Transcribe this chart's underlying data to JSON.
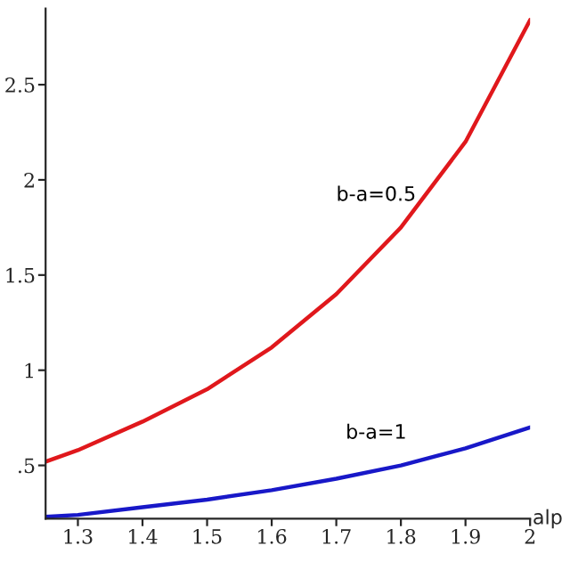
{
  "chart_data": {
    "type": "line",
    "xlabel": "alp",
    "x": [
      1.25,
      1.3,
      1.4,
      1.5,
      1.6,
      1.7,
      1.8,
      1.9,
      2.0
    ],
    "series": [
      {
        "name": "b-a=0.5",
        "color": "#e0181c",
        "values": [
          0.52,
          0.58,
          0.73,
          0.9,
          1.12,
          1.4,
          1.75,
          2.2,
          2.84
        ]
      },
      {
        "name": "b-a=1",
        "color": "#1818c8",
        "values": [
          0.23,
          0.24,
          0.28,
          0.32,
          0.37,
          0.43,
          0.5,
          0.59,
          0.7
        ]
      }
    ],
    "xlim": [
      1.25,
      2.0
    ],
    "ylim": [
      0.22,
      2.9
    ],
    "xticks": [
      1.3,
      1.4,
      1.5,
      1.6,
      1.7,
      1.8,
      1.9,
      2
    ],
    "yticks": [
      {
        "value": 0.5,
        "label": ".5"
      },
      1,
      1.5,
      2,
      2.5
    ],
    "grid": false,
    "legend": false
  }
}
